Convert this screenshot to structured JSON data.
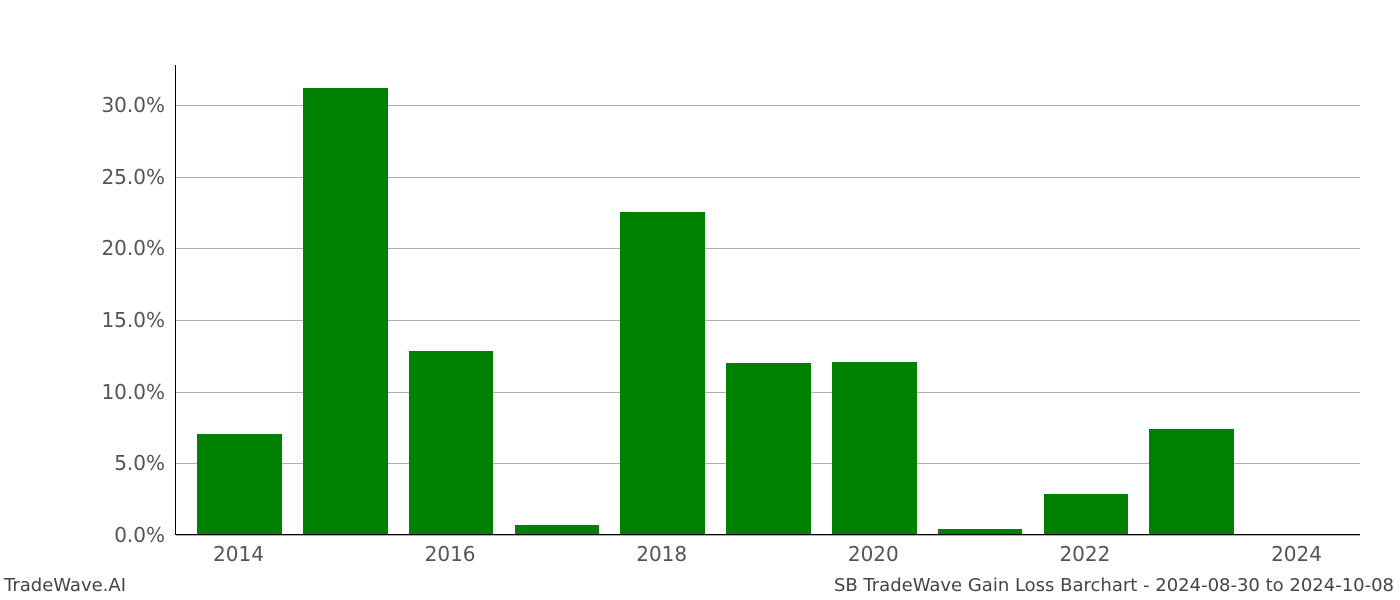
{
  "chart": {
    "type": "bar",
    "years": [
      2014,
      2015,
      2016,
      2017,
      2018,
      2019,
      2020,
      2021,
      2022,
      2023,
      2024
    ],
    "values": [
      7.0,
      31.1,
      12.8,
      0.6,
      22.5,
      11.9,
      12.0,
      0.35,
      2.8,
      7.3,
      0.0
    ],
    "bar_color": "#008000",
    "background_color": "#ffffff",
    "grid_color": "#b0b0b0",
    "axis_color": "#000000",
    "tick_label_color": "#555555",
    "footer_text_color": "#444444",
    "ylim": [
      0,
      32.8
    ],
    "ytick_values": [
      0.0,
      5.0,
      10.0,
      15.0,
      20.0,
      25.0,
      30.0
    ],
    "ytick_labels": [
      "0.0%",
      "5.0%",
      "10.0%",
      "15.0%",
      "20.0%",
      "25.0%",
      "30.0%"
    ],
    "xtick_values": [
      2014,
      2016,
      2018,
      2020,
      2022,
      2024
    ],
    "xtick_labels": [
      "2014",
      "2016",
      "2018",
      "2020",
      "2022",
      "2024"
    ],
    "xlim": [
      2013.4,
      2024.6
    ],
    "bar_width": 0.8,
    "tick_label_fontsize": 20,
    "footer_fontsize": 18
  },
  "footer": {
    "left": "TradeWave.AI",
    "right": "SB TradeWave Gain Loss Barchart - 2024-08-30 to 2024-10-08"
  }
}
